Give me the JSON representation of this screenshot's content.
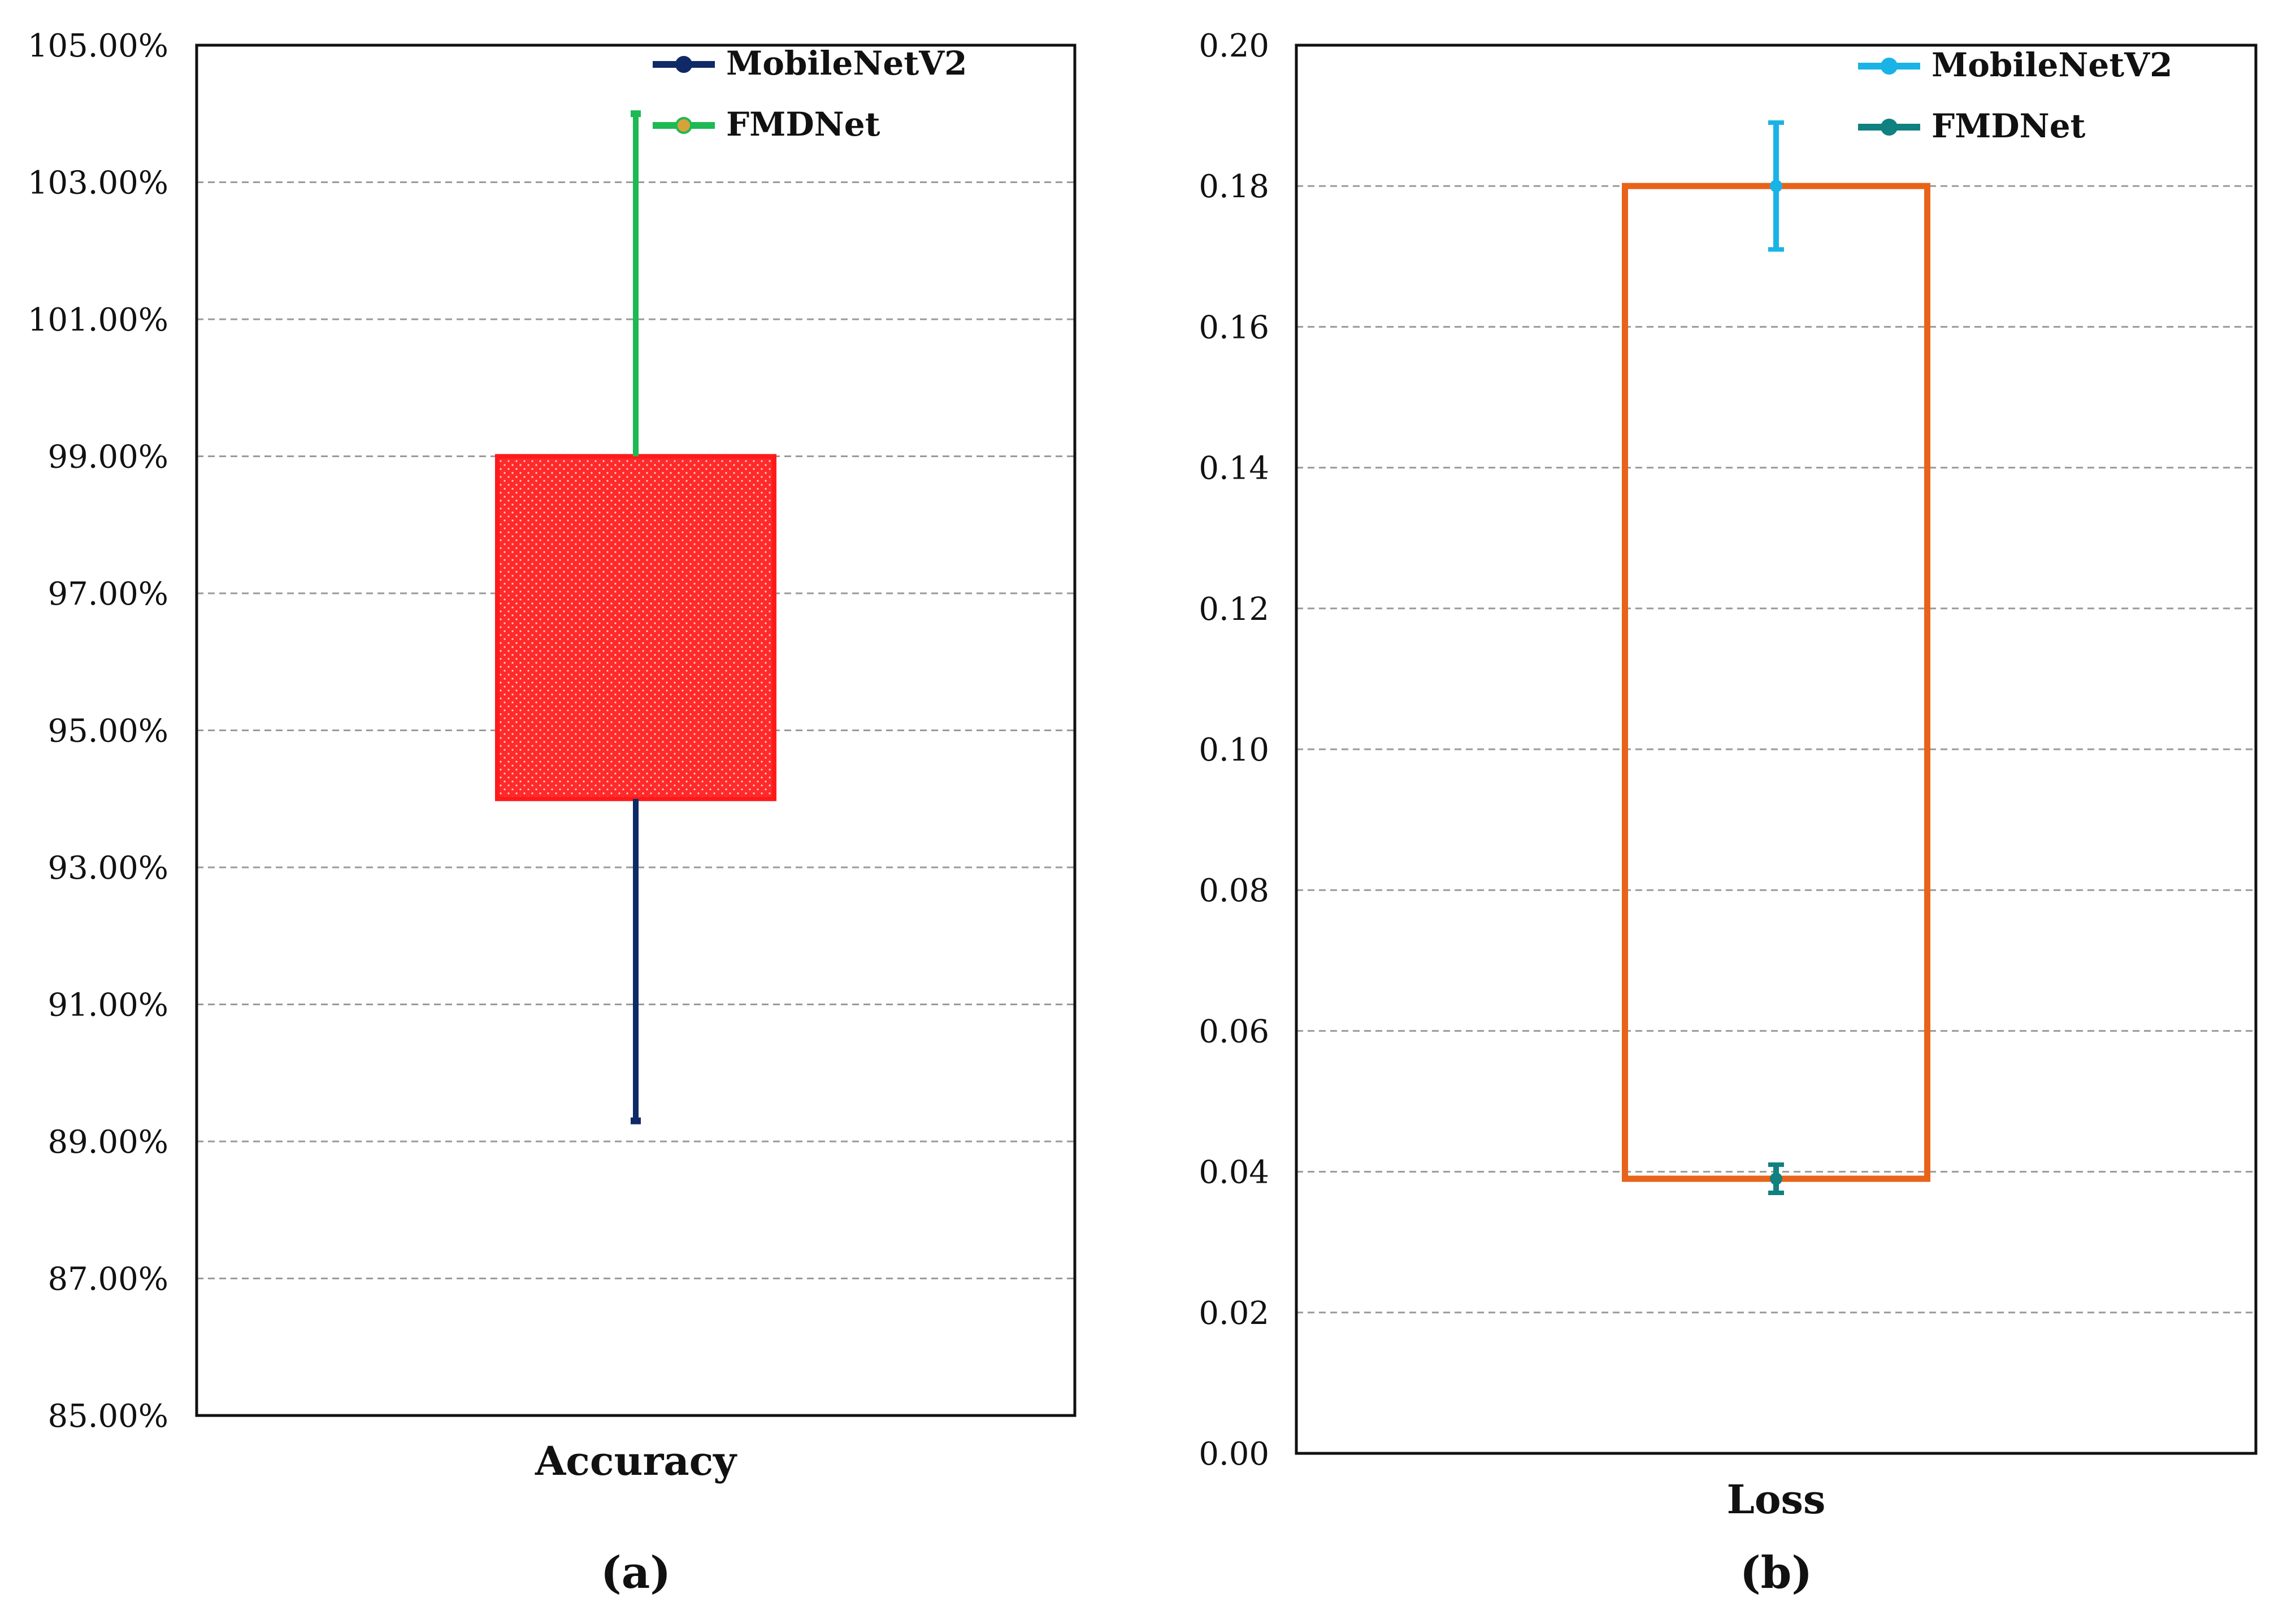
{
  "chart_data": [
    {
      "type": "box",
      "caption": "(a)",
      "category": "Accuracy",
      "ylim": [
        85,
        105
      ],
      "ytick_labels": [
        "85.00%",
        "87.00%",
        "89.00%",
        "91.00%",
        "93.00%",
        "95.00%",
        "97.00%",
        "99.00%",
        "101.00%",
        "103.00%",
        "105.00%"
      ],
      "ytick_values": [
        85,
        87,
        89,
        91,
        93,
        95,
        97,
        99,
        101,
        103,
        105
      ],
      "grid": true,
      "legend_position": "top-right",
      "box": {
        "low": 94.0,
        "high": 99.0,
        "color": "#ff2a2a"
      },
      "series": [
        {
          "name": "MobileNetV2",
          "color": "#0f2a66",
          "from": 94.0,
          "to": 89.3
        },
        {
          "name": "FMDNet",
          "color": "#1db954",
          "from": 99.0,
          "to": 104.0
        }
      ]
    },
    {
      "type": "box",
      "caption": "(b)",
      "category": "Loss",
      "ylim": [
        0,
        0.2
      ],
      "ytick_labels": [
        "0.00",
        "0.02",
        "0.04",
        "0.06",
        "0.08",
        "0.10",
        "0.12",
        "0.14",
        "0.16",
        "0.18",
        "0.20"
      ],
      "ytick_values": [
        0,
        0.02,
        0.04,
        0.06,
        0.08,
        0.1,
        0.12,
        0.14,
        0.16,
        0.18,
        0.2
      ],
      "grid": true,
      "legend_position": "top-right",
      "box": {
        "low": 0.039,
        "high": 0.18,
        "color": "#e8631a"
      },
      "series": [
        {
          "name": "MobileNetV2",
          "color": "#1ab3e6",
          "center": 0.18,
          "lo": 0.171,
          "hi": 0.189
        },
        {
          "name": "FMDNet",
          "color": "#118080",
          "center": 0.039,
          "lo": 0.037,
          "hi": 0.041
        }
      ]
    }
  ]
}
